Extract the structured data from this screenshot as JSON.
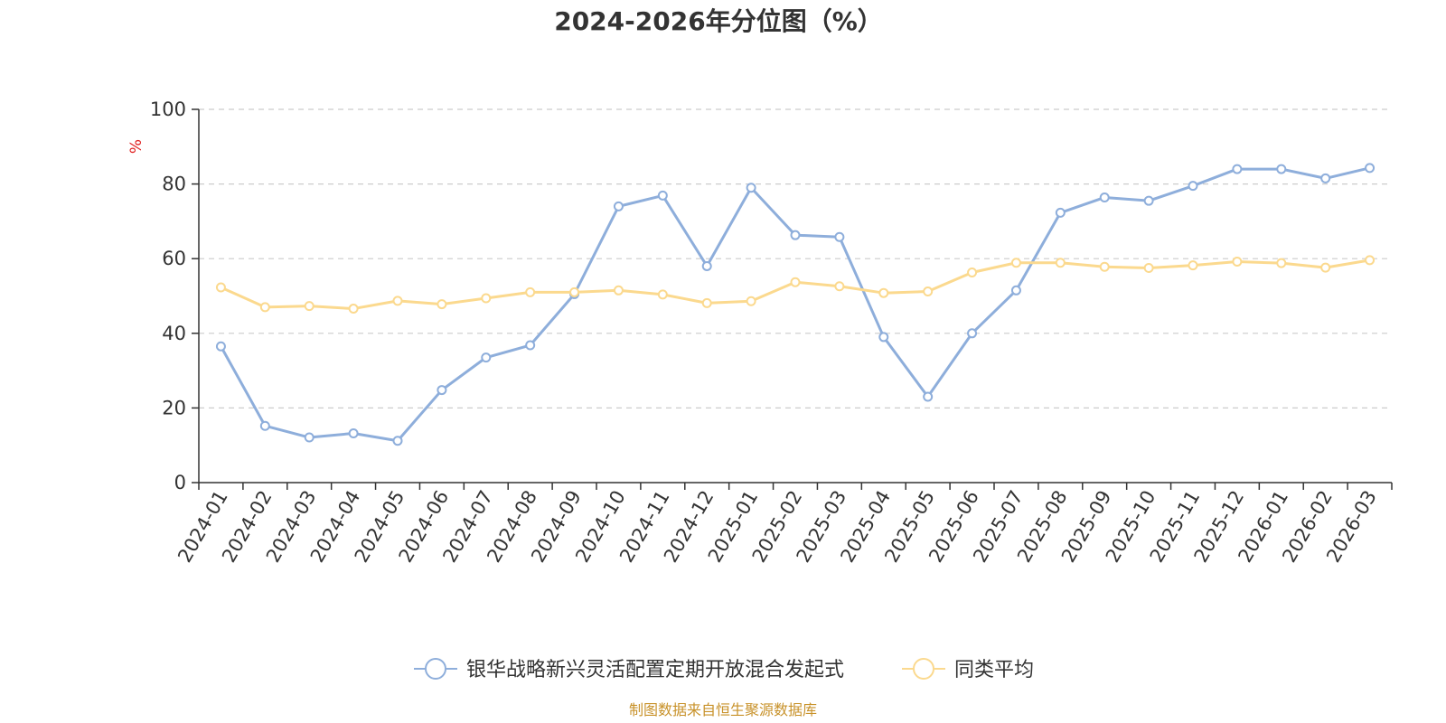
{
  "chart_data": {
    "type": "line",
    "title": "2024-2026年分位图（%）",
    "ylabel": "%",
    "ylim": [
      0,
      100
    ],
    "yticks": [
      0,
      20,
      40,
      60,
      80,
      100
    ],
    "grid": true,
    "legend_position": "bottom",
    "x": [
      "2024-01",
      "2024-02",
      "2024-03",
      "2024-04",
      "2024-05",
      "2024-06",
      "2024-07",
      "2024-08",
      "2024-09",
      "2024-10",
      "2024-11",
      "2024-12",
      "2025-01",
      "2025-02",
      "2025-03",
      "2025-04",
      "2025-05",
      "2025-06",
      "2025-07",
      "2025-08",
      "2025-09",
      "2025-10",
      "2025-11",
      "2025-12",
      "2026-01",
      "2026-02",
      "2026-03"
    ],
    "series": [
      {
        "name": "银华战略新兴灵活配置定期开放混合发起式",
        "color": "#8eaedb",
        "values": [
          36.5,
          15.2,
          12.1,
          13.2,
          11.2,
          24.8,
          33.5,
          36.8,
          50.5,
          74.0,
          76.9,
          58.0,
          79.0,
          66.3,
          65.8,
          39.0,
          23.0,
          40.0,
          51.5,
          72.3,
          76.4,
          75.5,
          79.5,
          84.0,
          84.0,
          81.5,
          84.3
        ]
      },
      {
        "name": "同类平均",
        "color": "#fbd98e",
        "values": [
          52.3,
          47.0,
          47.3,
          46.6,
          48.7,
          47.8,
          49.4,
          51.0,
          51.0,
          51.5,
          50.4,
          48.1,
          48.6,
          53.7,
          52.6,
          50.8,
          51.2,
          56.3,
          58.9,
          58.9,
          57.8,
          57.5,
          58.2,
          59.2,
          58.8,
          57.6,
          59.6
        ]
      }
    ]
  },
  "source_text": "制图数据来自恒生聚源数据库",
  "colors": {
    "axis": "#333333",
    "grid": "#cccccc",
    "ylabel": "#e02020",
    "source": "#c8922a"
  }
}
